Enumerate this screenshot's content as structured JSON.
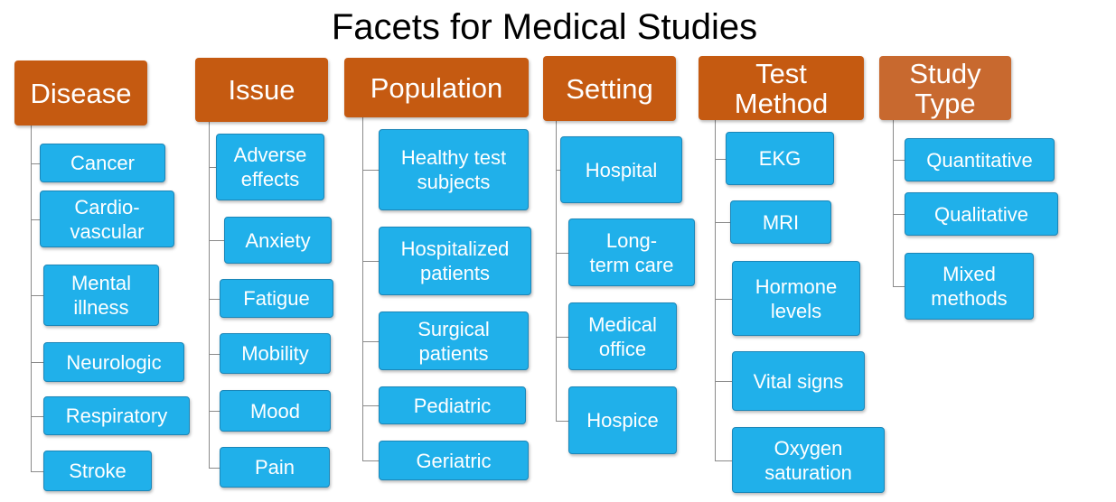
{
  "title": "Facets for Medical Studies",
  "colors": {
    "header": "#c55a11",
    "header_light": "#c8692f",
    "item": "#20b0ea",
    "connector": "#8a8a8a"
  },
  "facets": [
    {
      "label": "Disease",
      "items": [
        "Cancer",
        "Cardio-\nvascular",
        "Mental\nillness",
        "Neurologic",
        "Respiratory",
        "Stroke"
      ]
    },
    {
      "label": "Issue",
      "items": [
        "Adverse\neffects",
        "Anxiety",
        "Fatigue",
        "Mobility",
        "Mood",
        "Pain"
      ]
    },
    {
      "label": "Population",
      "items": [
        "Healthy test\nsubjects",
        "Hospitalized\npatients",
        "Surgical\npatients",
        "Pediatric",
        "Geriatric"
      ]
    },
    {
      "label": "Setting",
      "items": [
        "Hospital",
        "Long-\nterm care",
        "Medical\noffice",
        "Hospice"
      ]
    },
    {
      "label": "Test\nMethod",
      "items": [
        "EKG",
        "MRI",
        "Hormone\nlevels",
        "Vital signs",
        "Oxygen\nsaturation"
      ]
    },
    {
      "label": "Study\nType",
      "items": [
        "Quantitative",
        "Qualitative",
        "Mixed\nmethods"
      ]
    }
  ]
}
